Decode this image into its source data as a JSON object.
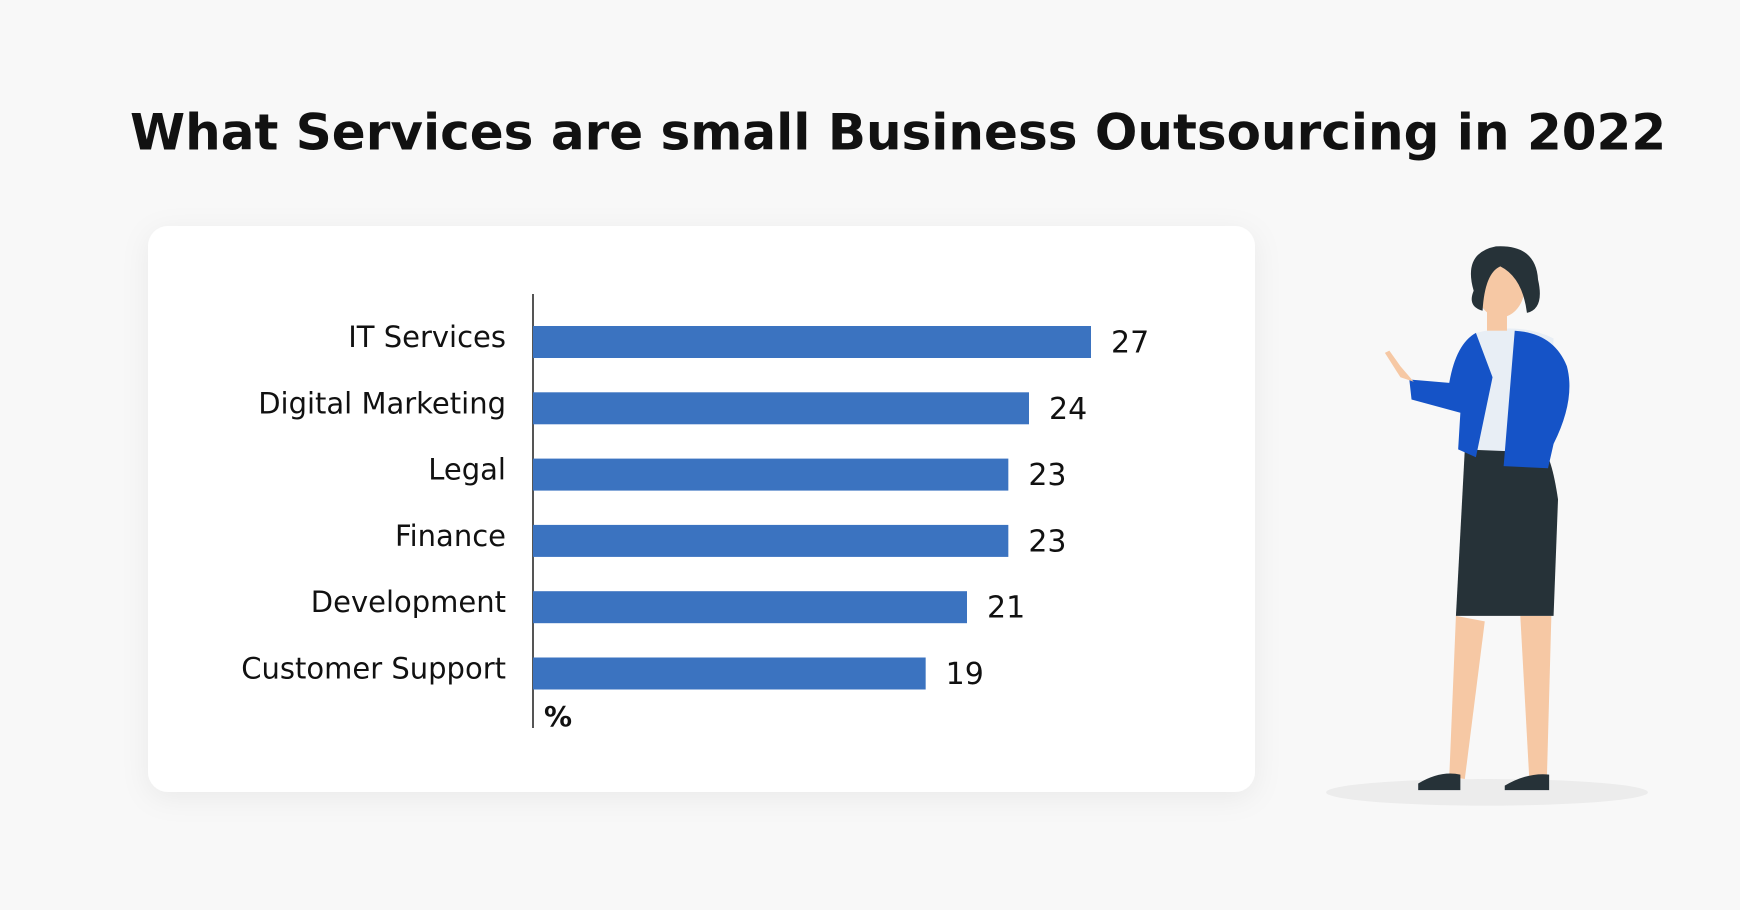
{
  "chart_data": {
    "type": "bar",
    "orientation": "horizontal",
    "title": "What Services are small Business Outsourcing in 2022",
    "categories": [
      "IT Services",
      "Digital Marketing",
      "Legal",
      "Finance",
      "Development",
      "Customer Support"
    ],
    "values": [
      27,
      24,
      23,
      23,
      21,
      19
    ],
    "color": "#3b73c0",
    "x_label": "%"
  }
}
